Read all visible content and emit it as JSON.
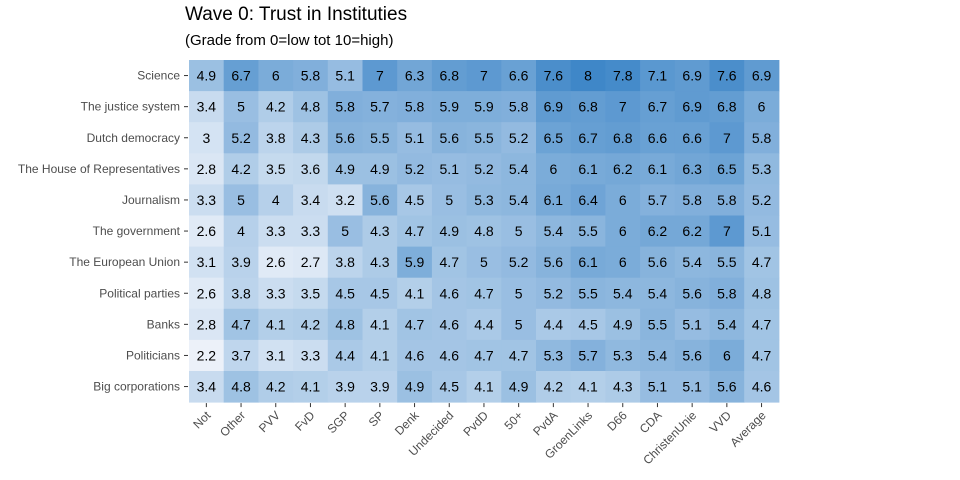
{
  "title": "Wave 0: Trust in Instituties",
  "subtitle": "(Grade from 0=low tot 10=high)",
  "chart_data": {
    "type": "heatmap",
    "title": "Wave 0: Trust in Instituties",
    "subtitle": "(Grade from 0=low tot 10=high)",
    "xlabel": "",
    "ylabel": "",
    "grid": false,
    "color_low": "#f2f5fb",
    "color_high": "#3f87c8",
    "value_range": [
      2,
      8
    ],
    "columns": [
      "Not",
      "Other",
      "PVV",
      "FvD",
      "SGP",
      "SP",
      "Denk",
      "Undecided",
      "PvdD",
      "50+",
      "PvdA",
      "GroenLinks",
      "D66",
      "CDA",
      "ChristenUnie",
      "VVD",
      "Average"
    ],
    "rows": [
      "Science",
      "The justice system",
      "Dutch democracy",
      "The House of Representatives",
      "Journalism",
      "The government",
      "The European Union",
      "Political parties",
      "Banks",
      "Politicians",
      "Big corporations"
    ],
    "values": [
      [
        4.9,
        6.7,
        6,
        5.8,
        5.1,
        7,
        6.3,
        6.8,
        7,
        6.6,
        7.6,
        8,
        7.8,
        7.1,
        6.9,
        7.6,
        6.9
      ],
      [
        3.4,
        5,
        4.2,
        4.8,
        5.8,
        5.7,
        5.8,
        5.9,
        5.9,
        5.8,
        6.9,
        6.8,
        7,
        6.7,
        6.9,
        6.8,
        6
      ],
      [
        3,
        5.2,
        3.8,
        4.3,
        5.6,
        5.5,
        5.1,
        5.6,
        5.5,
        5.2,
        6.5,
        6.7,
        6.8,
        6.6,
        6.6,
        7,
        5.8
      ],
      [
        2.8,
        4.2,
        3.5,
        3.6,
        4.9,
        4.9,
        5.2,
        5.1,
        5.2,
        5.4,
        6,
        6.1,
        6.2,
        6.1,
        6.3,
        6.5,
        5.3
      ],
      [
        3.3,
        5,
        4,
        3.4,
        3.2,
        5.6,
        4.5,
        5,
        5.3,
        5.4,
        6.1,
        6.4,
        6,
        5.7,
        5.8,
        5.8,
        5.2
      ],
      [
        2.6,
        4,
        3.3,
        3.3,
        5,
        4.3,
        4.7,
        4.9,
        4.8,
        5,
        5.4,
        5.5,
        6,
        6.2,
        6.2,
        7,
        5.1
      ],
      [
        3.1,
        3.9,
        2.6,
        2.7,
        3.8,
        4.3,
        5.9,
        4.7,
        5,
        5.2,
        5.6,
        6.1,
        6,
        5.6,
        5.4,
        5.5,
        4.7
      ],
      [
        2.6,
        3.8,
        3.3,
        3.5,
        4.5,
        4.5,
        4.1,
        4.6,
        4.7,
        5,
        5.2,
        5.5,
        5.4,
        5.4,
        5.6,
        5.8,
        4.8
      ],
      [
        2.8,
        4.7,
        4.1,
        4.2,
        4.8,
        4.1,
        4.7,
        4.6,
        4.4,
        5,
        4.4,
        4.5,
        4.9,
        5.5,
        5.1,
        5.4,
        4.7
      ],
      [
        2.2,
        3.7,
        3.1,
        3.3,
        4.4,
        4.1,
        4.6,
        4.6,
        4.7,
        4.7,
        5.3,
        5.7,
        5.3,
        5.4,
        5.6,
        6,
        4.7
      ],
      [
        3.4,
        4.8,
        4.2,
        4.1,
        3.9,
        3.9,
        4.9,
        4.5,
        4.1,
        4.9,
        4.2,
        4.1,
        4.3,
        5.1,
        5.1,
        5.6,
        4.6
      ]
    ]
  }
}
